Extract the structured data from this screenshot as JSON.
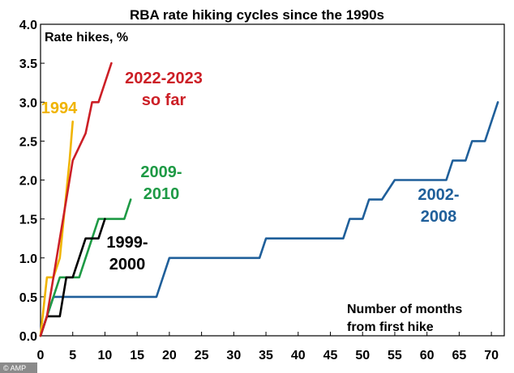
{
  "chart_data": {
    "type": "line",
    "title": "RBA rate hiking cycles since the 1990s",
    "ylabel": "Rate hikes, %",
    "xlabel": [
      "Number of months",
      "from first hike"
    ],
    "xlim": [
      0,
      72
    ],
    "ylim": [
      0,
      4.0
    ],
    "x_ticks": [
      0,
      5,
      10,
      15,
      20,
      25,
      30,
      35,
      40,
      45,
      50,
      55,
      60,
      65,
      70
    ],
    "y_ticks": [
      "0.0",
      "0.5",
      "1.0",
      "1.5",
      "2.0",
      "2.5",
      "3.0",
      "3.5",
      "4.0"
    ],
    "grid": false,
    "credit": "© AMP",
    "series": [
      {
        "name": "2002-2008",
        "label_lines": [
          "2002-",
          "2008"
        ],
        "color": "#1f5f9a",
        "points": [
          [
            0,
            0
          ],
          [
            2,
            0.5
          ],
          [
            18,
            0.5
          ],
          [
            20,
            1.0
          ],
          [
            34,
            1.0
          ],
          [
            35,
            1.25
          ],
          [
            47,
            1.25
          ],
          [
            48,
            1.5
          ],
          [
            50,
            1.5
          ],
          [
            51,
            1.75
          ],
          [
            53,
            1.75
          ],
          [
            55,
            2.0
          ],
          [
            63,
            2.0
          ],
          [
            64,
            2.25
          ],
          [
            66,
            2.25
          ],
          [
            67,
            2.5
          ],
          [
            69,
            2.5
          ],
          [
            71,
            3.0
          ]
        ]
      },
      {
        "name": "2009-2010",
        "label_lines": [
          "2009-",
          "2010"
        ],
        "color": "#1e9a45",
        "points": [
          [
            0,
            0
          ],
          [
            1,
            0.25
          ],
          [
            2,
            0.5
          ],
          [
            3,
            0.75
          ],
          [
            6,
            0.75
          ],
          [
            7,
            1.0
          ],
          [
            8,
            1.25
          ],
          [
            9,
            1.5
          ],
          [
            13,
            1.5
          ],
          [
            14,
            1.75
          ]
        ]
      },
      {
        "name": "1999-2000",
        "label_lines": [
          "1999-",
          "2000"
        ],
        "color": "#000000",
        "points": [
          [
            0,
            0
          ],
          [
            1,
            0.25
          ],
          [
            3,
            0.25
          ],
          [
            4,
            0.75
          ],
          [
            5,
            0.75
          ],
          [
            7,
            1.25
          ],
          [
            9,
            1.25
          ],
          [
            10,
            1.5
          ]
        ]
      },
      {
        "name": "1994",
        "label_lines": [
          "1994"
        ],
        "color": "#f0b400",
        "points": [
          [
            0,
            0
          ],
          [
            1,
            0.75
          ],
          [
            2,
            0.75
          ],
          [
            3,
            1.0
          ],
          [
            4.5,
            2.25
          ],
          [
            5,
            2.75
          ]
        ]
      },
      {
        "name": "2022-2023 so far",
        "label_lines": [
          "2022-2023",
          "so far"
        ],
        "color": "#cc1f26",
        "points": [
          [
            0,
            0
          ],
          [
            1,
            0.25
          ],
          [
            2,
            0.75
          ],
          [
            3,
            1.25
          ],
          [
            4,
            1.75
          ],
          [
            5,
            2.25
          ],
          [
            7,
            2.6
          ],
          [
            8,
            3.0
          ],
          [
            9,
            3.0
          ],
          [
            11,
            3.5
          ]
        ]
      }
    ]
  }
}
